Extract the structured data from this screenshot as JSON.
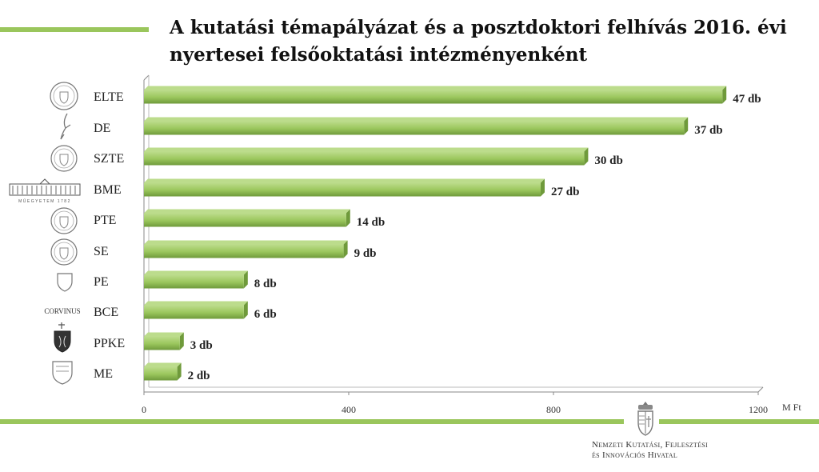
{
  "title_line1": "A kutatási témapályázat és a posztdoktori felhívás 2016. évi",
  "title_line2": "nyertesei felsőoktatási intézményenként",
  "unit_label": "M Ft",
  "agency": {
    "line1": "Nemzeti Kutatási, Fejlesztési",
    "line2": "és Innovációs Hivatal"
  },
  "logo_texts": {
    "BME": "MŰEGYETEM 1782",
    "BCE": "CORVINUS"
  },
  "colors": {
    "bar": "#9ac65c",
    "bar_light": "#bcdc8c",
    "bar_dark": "#6f9a3b",
    "accent_line": "#9ac65c"
  },
  "chart_data": {
    "type": "bar",
    "orientation": "horizontal",
    "categories": [
      "ELTE",
      "DE",
      "SZTE",
      "BME",
      "PTE",
      "SE",
      "PE",
      "BCE",
      "PPKE",
      "ME"
    ],
    "values": [
      1130,
      1055,
      860,
      775,
      395,
      390,
      195,
      195,
      70,
      65
    ],
    "data_labels": [
      "47 db",
      "37 db",
      "30 db",
      "27 db",
      "14 db",
      "9 db",
      "8 db",
      "6 db",
      "3 db",
      "2 db"
    ],
    "xlim": [
      0,
      1200
    ],
    "xticks": [
      0,
      400,
      800,
      1200
    ],
    "xlabel": "M Ft",
    "grid": false
  }
}
